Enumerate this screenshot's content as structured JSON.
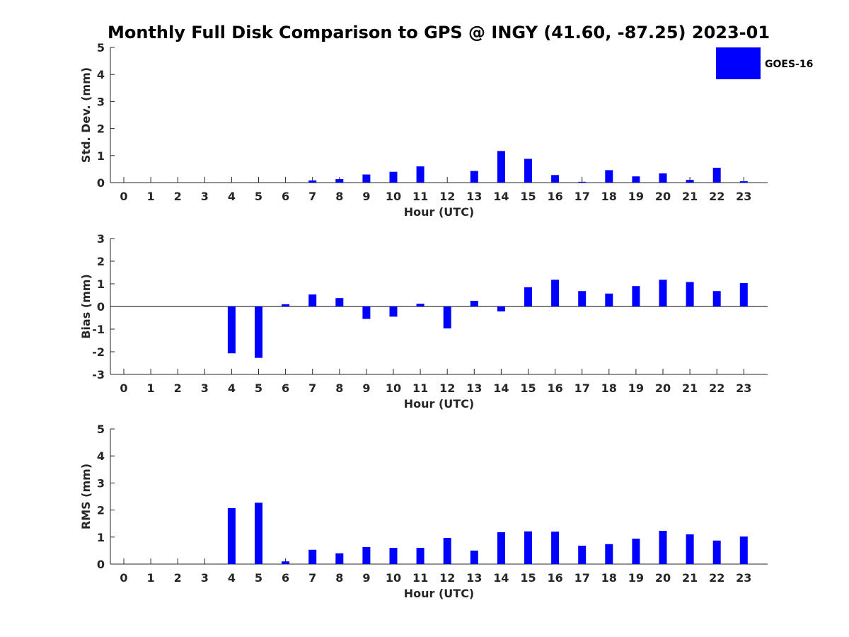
{
  "chart_data": {
    "title": "Monthly Full Disk Comparison to GPS @ INGY (41.60, -87.25) 2023-01",
    "legend": {
      "label": "GOES-16",
      "color": "#0000ff",
      "placement": "top-right"
    },
    "bar_color": "#0000ff",
    "panels": [
      {
        "type": "bar",
        "ylabel": "Std. Dev. (mm)",
        "xlabel": "Hour (UTC)",
        "ylim": [
          0,
          5
        ],
        "yticks": [
          "0",
          "1",
          "2",
          "3",
          "4",
          "5"
        ],
        "categories": [
          "0",
          "1",
          "2",
          "3",
          "4",
          "5",
          "6",
          "7",
          "8",
          "9",
          "10",
          "11",
          "12",
          "13",
          "14",
          "15",
          "16",
          "17",
          "18",
          "19",
          "20",
          "21",
          "22",
          "23"
        ],
        "values": [
          0,
          0,
          0,
          0,
          0,
          0,
          0,
          0.08,
          0.13,
          0.3,
          0.4,
          0.6,
          0,
          0.43,
          1.17,
          0.88,
          0.28,
          0.03,
          0.46,
          0.23,
          0.34,
          0.1,
          0.55,
          0.05
        ]
      },
      {
        "type": "bar",
        "ylabel": "Bias (mm)",
        "xlabel": "Hour (UTC)",
        "ylim": [
          -3,
          3
        ],
        "yticks": [
          "-3",
          "-2",
          "-1",
          "0",
          "1",
          "2",
          "3"
        ],
        "zero_line": true,
        "categories": [
          "0",
          "1",
          "2",
          "3",
          "4",
          "5",
          "6",
          "7",
          "8",
          "9",
          "10",
          "11",
          "12",
          "13",
          "14",
          "15",
          "16",
          "17",
          "18",
          "19",
          "20",
          "21",
          "22",
          "23"
        ],
        "values": [
          0,
          0,
          0,
          0,
          -2.07,
          -2.27,
          0.1,
          0.53,
          0.37,
          -0.55,
          -0.45,
          0.12,
          -0.97,
          0.25,
          -0.22,
          0.85,
          1.18,
          0.68,
          0.57,
          0.9,
          1.18,
          1.08,
          0.68,
          1.03
        ]
      },
      {
        "type": "bar",
        "ylabel": "RMS (mm)",
        "xlabel": "Hour (UTC)",
        "ylim": [
          0,
          5
        ],
        "yticks": [
          "0",
          "1",
          "2",
          "3",
          "4",
          "5"
        ],
        "categories": [
          "0",
          "1",
          "2",
          "3",
          "4",
          "5",
          "6",
          "7",
          "8",
          "9",
          "10",
          "11",
          "12",
          "13",
          "14",
          "15",
          "16",
          "17",
          "18",
          "19",
          "20",
          "21",
          "22",
          "23"
        ],
        "values": [
          0,
          0,
          0,
          0,
          2.07,
          2.27,
          0.1,
          0.53,
          0.4,
          0.63,
          0.6,
          0.6,
          0.97,
          0.5,
          1.18,
          1.21,
          1.2,
          0.68,
          0.74,
          0.94,
          1.23,
          1.1,
          0.87,
          1.02
        ]
      }
    ]
  }
}
